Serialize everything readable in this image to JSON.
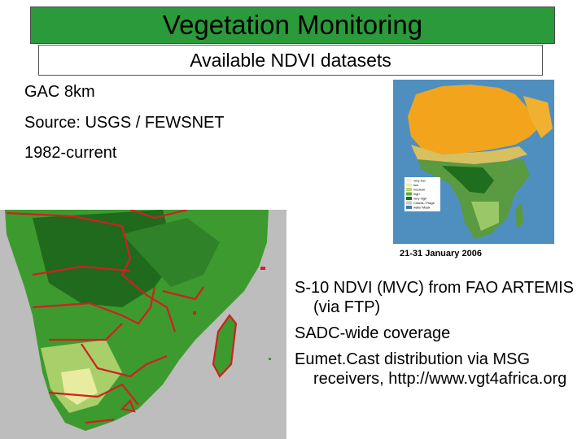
{
  "header": {
    "title": "Vegetation Monitoring",
    "subtitle": "Available NDVI datasets"
  },
  "dataset_info": [
    "GAC 8km",
    "Source: USGS / FEWSNET",
    "1982-current"
  ],
  "africa_map": {
    "caption": "21-31 January 2006",
    "legend": [
      "very low",
      "low",
      "medium",
      "high",
      "very high",
      "Clouds / Flags",
      "water Mask"
    ],
    "legend_colors": [
      "#f5f0d8",
      "#e8f0a0",
      "#b8d878",
      "#5cae3c",
      "#1e6e1e",
      "#c8c8c8",
      "#3a7ab8"
    ]
  },
  "bullets": [
    "S-10 NDVI (MVC) from FAO ARTEMIS (via FTP)",
    "SADC-wide coverage",
    "Eumet.Cast distribution via MSG receivers, http://www.vgt4africa.org"
  ],
  "colors": {
    "title_bg": "#2b9a3a",
    "sea_grey": "#bdbdbd",
    "ocean_blue": "#4f8fc0",
    "boundary_red": "#d02020",
    "desert_orange": "#f2a51c"
  }
}
